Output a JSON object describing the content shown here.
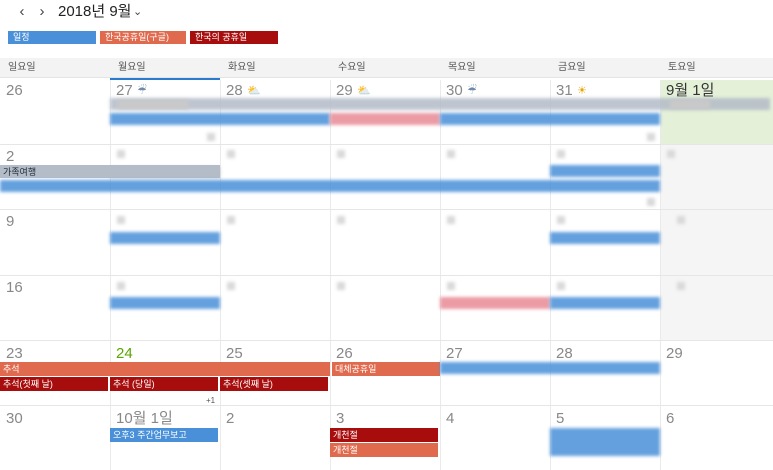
{
  "header": {
    "prev": "‹",
    "next": "›",
    "title": "2018년 9월",
    "dropdown": "⌄"
  },
  "calendars": [
    {
      "label": "일정",
      "color": "#4a90d9"
    },
    {
      "label": "한국공휴일(구글)",
      "color": "#e06a4e"
    },
    {
      "label": "한국의 공휴일",
      "color": "#a80d0d"
    }
  ],
  "weekdays": [
    "일요일",
    "월요일",
    "화요일",
    "수요일",
    "목요일",
    "금요일",
    "토요일"
  ],
  "weeks": [
    [
      "26",
      "27",
      "28",
      "29",
      "30",
      "31",
      "9월 1일"
    ],
    [
      "2",
      "",
      "",
      "",
      "",
      "",
      ""
    ],
    [
      "9",
      "",
      "",
      "",
      "",
      "",
      ""
    ],
    [
      "16",
      "",
      "",
      "",
      "",
      "",
      ""
    ],
    [
      "23",
      "24",
      "25",
      "26",
      "27",
      "28",
      "29"
    ],
    [
      "30",
      "10월 1일",
      "2",
      "3",
      "4",
      "5",
      "6"
    ]
  ],
  "weather": {
    "mon": "cloud-rain-icon",
    "tue": "sun-cloud-icon",
    "wed": "sun-cloud-icon",
    "thu": "cloud-rain-icon",
    "fri": "sun-icon"
  },
  "events": {
    "family_trip": "가족여행",
    "chuseok": "추석",
    "substitute_holiday": "대체공휴일",
    "chuseok_day1": "추석(첫째 날)",
    "chuseok_day2": "추석 (당일)",
    "chuseok_day3": "추석(셋째 날)",
    "more_count": "+1",
    "oct1_event": "오후3 주간업무보고",
    "gaecheonjeol_1": "개천절",
    "gaecheonjeol_2": "개천절"
  },
  "colors": {
    "event_blue": "#4a90d9",
    "holiday_google": "#e06a4e",
    "holiday_korea": "#a80d0d",
    "pink": "#e88a95",
    "gray": "#b4bcc8",
    "saturday_bg": "#e4f0d8",
    "today_accent": "#5aa500"
  }
}
